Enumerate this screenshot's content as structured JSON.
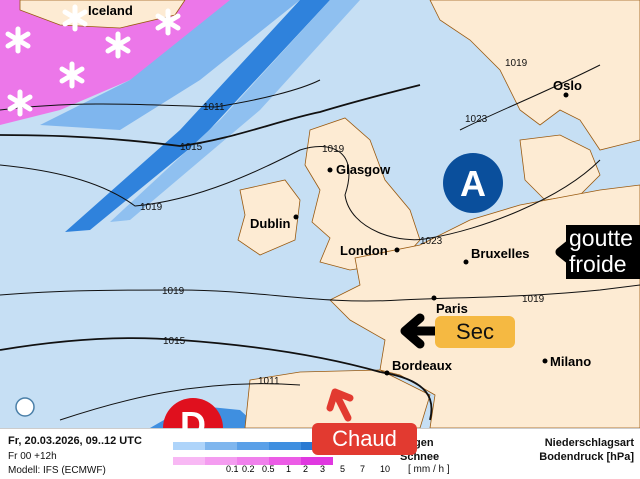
{
  "map": {
    "cities": [
      "Iceland",
      "Oslo",
      "Glasgow",
      "Dublin",
      "London",
      "Bruxelles",
      "Paris",
      "Bordeaux",
      "Milano"
    ],
    "isobars": [
      "1011",
      "1015",
      "1019",
      "1023"
    ],
    "high_label": "A",
    "low_label": "D",
    "annotations": {
      "cold": "goutte froide",
      "dry": "Sec",
      "warm": "Chaud"
    },
    "colors": {
      "sea": "#c6dff4",
      "land": "#fdebd3",
      "rain": "#3f8fe0",
      "snow": "#f060e8",
      "high": "#0a4f9c",
      "low": "#e0101e",
      "dry": "#f5b942",
      "warm": "#e23a30"
    }
  },
  "legend": {
    "datetime": "Fr, 20.03.2026, 09..12 UTC",
    "run": "Fr 00 +12h",
    "model": "Modell: IFS (ECMWF)",
    "rain_label": "Regen",
    "snow_label": "Schnee",
    "ticks": [
      "0.1",
      "0.2",
      "0.5",
      "1",
      "2",
      "3",
      "5",
      "7",
      "10"
    ],
    "unit": "[ mm / h ]",
    "title1": "Niederschlagsart",
    "title2": "Bodendruck [hPa]"
  }
}
